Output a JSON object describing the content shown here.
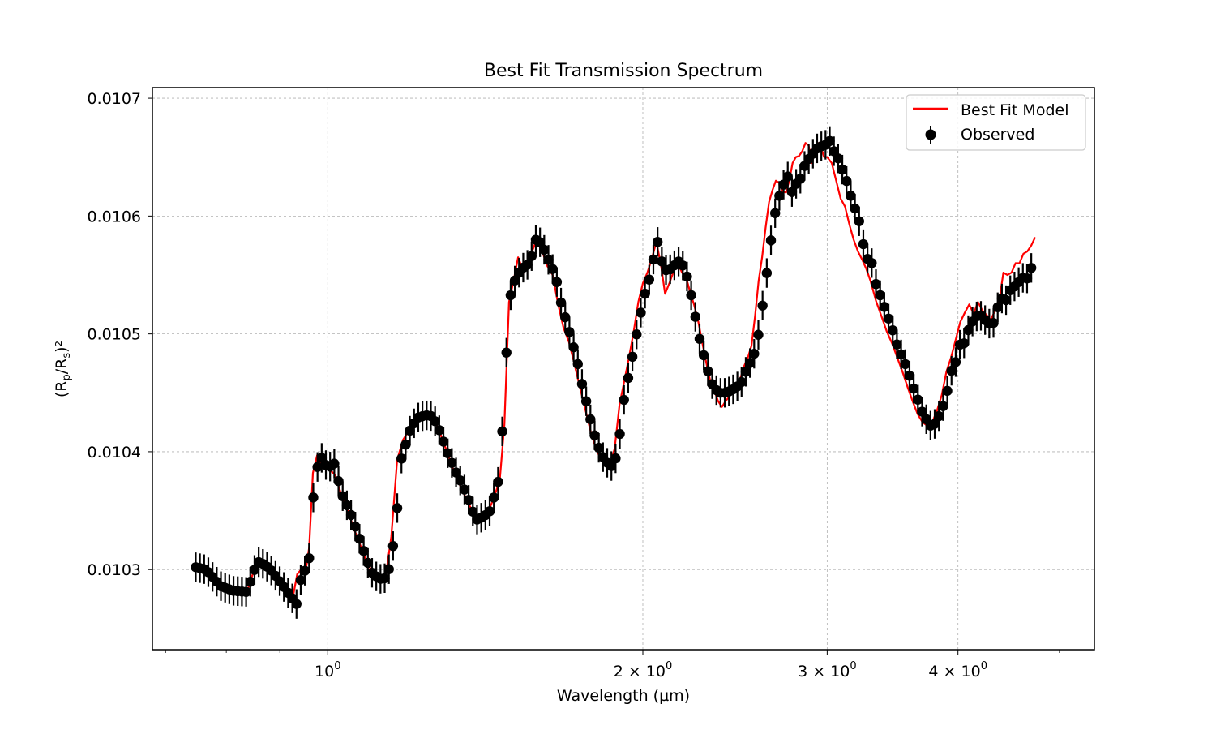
{
  "chart_data": {
    "type": "line",
    "title": "Best Fit Transmission Spectrum",
    "xlabel": "Wavelength (µm)",
    "ylabel": "(R_p/R_s)²",
    "x_scale": "log",
    "xlim": [
      0.68,
      5.4
    ],
    "ylim": [
      0.010232,
      0.010709
    ],
    "grid": true,
    "legend_position": "top-right",
    "colors": {
      "model": "#ff0000",
      "observed": "#000000"
    },
    "x_ticks": [
      {
        "value": 1,
        "base": "10",
        "exp": "0"
      },
      {
        "value": 2,
        "base": "2 × 10",
        "exp": "0"
      },
      {
        "value": 3,
        "base": "3 × 10",
        "exp": "0"
      },
      {
        "value": 4,
        "base": "4 × 10",
        "exp": "0"
      }
    ],
    "x_minor_ticks": [
      0.7,
      0.8,
      0.9,
      5
    ],
    "y_ticks": [
      {
        "value": 0.0103,
        "label": "0.0103"
      },
      {
        "value": 0.0104,
        "label": "0.0104"
      },
      {
        "value": 0.0105,
        "label": "0.0105"
      },
      {
        "value": 0.0106,
        "label": "0.0106"
      },
      {
        "value": 0.0107,
        "label": "0.0107"
      }
    ],
    "model_anchors": [
      [
        0.75,
        0.010302
      ],
      [
        0.77,
        0.010298
      ],
      [
        0.79,
        0.010287
      ],
      [
        0.81,
        0.010283
      ],
      [
        0.825,
        0.01028
      ],
      [
        0.838,
        0.010282
      ],
      [
        0.847,
        0.010295
      ],
      [
        0.855,
        0.010306
      ],
      [
        0.87,
        0.010303
      ],
      [
        0.885,
        0.010296
      ],
      [
        0.9,
        0.010288
      ],
      [
        0.915,
        0.010278
      ],
      [
        0.925,
        0.010274
      ],
      [
        0.935,
        0.010296
      ],
      [
        0.945,
        0.010301
      ],
      [
        0.953,
        0.0103
      ],
      [
        0.96,
        0.010319
      ],
      [
        0.968,
        0.010382
      ],
      [
        0.977,
        0.010397
      ],
      [
        0.99,
        0.010386
      ],
      [
        1.0,
        0.010386
      ],
      [
        1.015,
        0.010381
      ],
      [
        1.03,
        0.010364
      ],
      [
        1.045,
        0.01035
      ],
      [
        1.06,
        0.010334
      ],
      [
        1.075,
        0.01032
      ],
      [
        1.09,
        0.010306
      ],
      [
        1.105,
        0.010297
      ],
      [
        1.12,
        0.010292
      ],
      [
        1.135,
        0.010292
      ],
      [
        1.15,
        0.010328
      ],
      [
        1.165,
        0.010393
      ],
      [
        1.18,
        0.01041
      ],
      [
        1.2,
        0.01042
      ],
      [
        1.22,
        0.010428
      ],
      [
        1.24,
        0.01043
      ],
      [
        1.26,
        0.01043
      ],
      [
        1.28,
        0.010416
      ],
      [
        1.3,
        0.0104
      ],
      [
        1.32,
        0.010383
      ],
      [
        1.34,
        0.01037
      ],
      [
        1.36,
        0.010358
      ],
      [
        1.38,
        0.010346
      ],
      [
        1.4,
        0.010345
      ],
      [
        1.42,
        0.010347
      ],
      [
        1.44,
        0.01036
      ],
      [
        1.46,
        0.010376
      ],
      [
        1.475,
        0.010423
      ],
      [
        1.49,
        0.010527
      ],
      [
        1.505,
        0.010545
      ],
      [
        1.52,
        0.010565
      ],
      [
        1.54,
        0.010552
      ],
      [
        1.56,
        0.010565
      ],
      [
        1.58,
        0.010578
      ],
      [
        1.6,
        0.010572
      ],
      [
        1.62,
        0.010558
      ],
      [
        1.64,
        0.01055
      ],
      [
        1.66,
        0.010525
      ],
      [
        1.68,
        0.010505
      ],
      [
        1.7,
        0.010493
      ],
      [
        1.72,
        0.010475
      ],
      [
        1.74,
        0.010456
      ],
      [
        1.76,
        0.010438
      ],
      [
        1.78,
        0.01042
      ],
      [
        1.8,
        0.010405
      ],
      [
        1.82,
        0.010395
      ],
      [
        1.84,
        0.010389
      ],
      [
        1.86,
        0.010388
      ],
      [
        1.88,
        0.010403
      ],
      [
        1.9,
        0.01044
      ],
      [
        1.92,
        0.01046
      ],
      [
        1.94,
        0.01048
      ],
      [
        1.96,
        0.010502
      ],
      [
        1.98,
        0.010527
      ],
      [
        2.0,
        0.010543
      ],
      [
        2.02,
        0.010552
      ],
      [
        2.04,
        0.010564
      ],
      [
        2.06,
        0.010578
      ],
      [
        2.08,
        0.01056
      ],
      [
        2.1,
        0.010534
      ],
      [
        2.12,
        0.010543
      ],
      [
        2.14,
        0.010553
      ],
      [
        2.16,
        0.01056
      ],
      [
        2.18,
        0.010552
      ],
      [
        2.2,
        0.010548
      ],
      [
        2.22,
        0.010535
      ],
      [
        2.24,
        0.010524
      ],
      [
        2.26,
        0.01051
      ],
      [
        2.28,
        0.010492
      ],
      [
        2.3,
        0.010475
      ],
      [
        2.32,
        0.01046
      ],
      [
        2.34,
        0.010452
      ],
      [
        2.36,
        0.010443
      ],
      [
        2.38,
        0.010438
      ],
      [
        2.4,
        0.010443
      ],
      [
        2.42,
        0.010447
      ],
      [
        2.44,
        0.010455
      ],
      [
        2.46,
        0.010457
      ],
      [
        2.48,
        0.010463
      ],
      [
        2.5,
        0.010473
      ],
      [
        2.52,
        0.01048
      ],
      [
        2.54,
        0.01049
      ],
      [
        2.56,
        0.010515
      ],
      [
        2.58,
        0.010545
      ],
      [
        2.6,
        0.010565
      ],
      [
        2.62,
        0.01059
      ],
      [
        2.64,
        0.010612
      ],
      [
        2.66,
        0.010622
      ],
      [
        2.68,
        0.01063
      ],
      [
        2.7,
        0.010628
      ],
      [
        2.72,
        0.010621
      ],
      [
        2.74,
        0.01062
      ],
      [
        2.76,
        0.01063
      ],
      [
        2.78,
        0.010645
      ],
      [
        2.8,
        0.01065
      ],
      [
        2.82,
        0.010651
      ],
      [
        2.84,
        0.010655
      ],
      [
        2.86,
        0.010662
      ],
      [
        2.88,
        0.01066
      ],
      [
        2.9,
        0.010645
      ],
      [
        2.92,
        0.010655
      ],
      [
        2.94,
        0.010662
      ],
      [
        2.96,
        0.010658
      ],
      [
        2.98,
        0.01065
      ],
      [
        3.0,
        0.01065
      ],
      [
        3.03,
        0.010645
      ],
      [
        3.06,
        0.01063
      ],
      [
        3.09,
        0.010615
      ],
      [
        3.12,
        0.010608
      ],
      [
        3.15,
        0.010593
      ],
      [
        3.18,
        0.01058
      ],
      [
        3.21,
        0.01057
      ],
      [
        3.24,
        0.010563
      ],
      [
        3.27,
        0.010555
      ],
      [
        3.3,
        0.010545
      ],
      [
        3.34,
        0.010528
      ],
      [
        3.38,
        0.010515
      ],
      [
        3.42,
        0.010502
      ],
      [
        3.46,
        0.010492
      ],
      [
        3.5,
        0.01048
      ],
      [
        3.54,
        0.010468
      ],
      [
        3.58,
        0.010455
      ],
      [
        3.62,
        0.010443
      ],
      [
        3.66,
        0.010432
      ],
      [
        3.7,
        0.010425
      ],
      [
        3.74,
        0.010422
      ],
      [
        3.78,
        0.010425
      ],
      [
        3.82,
        0.010435
      ],
      [
        3.86,
        0.010448
      ],
      [
        3.9,
        0.010468
      ],
      [
        3.94,
        0.01048
      ],
      [
        3.98,
        0.010495
      ],
      [
        4.02,
        0.01051
      ],
      [
        4.06,
        0.010518
      ],
      [
        4.1,
        0.010525
      ],
      [
        4.14,
        0.010517
      ],
      [
        4.18,
        0.010527
      ],
      [
        4.22,
        0.01052
      ],
      [
        4.26,
        0.010516
      ],
      [
        4.3,
        0.010512
      ],
      [
        4.34,
        0.01052
      ],
      [
        4.38,
        0.010528
      ],
      [
        4.42,
        0.010552
      ],
      [
        4.46,
        0.01055
      ],
      [
        4.5,
        0.010552
      ],
      [
        4.54,
        0.01056
      ],
      [
        4.58,
        0.01056
      ],
      [
        4.62,
        0.010568
      ],
      [
        4.66,
        0.01057
      ],
      [
        4.7,
        0.010575
      ],
      [
        4.74,
        0.010582
      ]
    ],
    "observed_anchors": [
      [
        0.748,
        0.010302
      ],
      [
        0.765,
        0.0103
      ],
      [
        0.79,
        0.010286
      ],
      [
        0.812,
        0.010282
      ],
      [
        0.838,
        0.010281
      ],
      [
        0.848,
        0.010297
      ],
      [
        0.86,
        0.010307
      ],
      [
        0.88,
        0.010301
      ],
      [
        0.9,
        0.01029
      ],
      [
        0.917,
        0.01028
      ],
      [
        0.935,
        0.01027
      ],
      [
        0.945,
        0.010299
      ],
      [
        0.958,
        0.010299
      ],
      [
        0.972,
        0.01038
      ],
      [
        0.985,
        0.010396
      ],
      [
        1.0,
        0.010386
      ],
      [
        1.015,
        0.01039
      ],
      [
        1.03,
        0.010365
      ],
      [
        1.05,
        0.010349
      ],
      [
        1.065,
        0.010334
      ],
      [
        1.08,
        0.010318
      ],
      [
        1.1,
        0.010298
      ],
      [
        1.12,
        0.010292
      ],
      [
        1.14,
        0.010293
      ],
      [
        1.16,
        0.01033
      ],
      [
        1.175,
        0.010393
      ],
      [
        1.2,
        0.01042
      ],
      [
        1.22,
        0.010429
      ],
      [
        1.24,
        0.010431
      ],
      [
        1.26,
        0.01043
      ],
      [
        1.28,
        0.010417
      ],
      [
        1.3,
        0.0104
      ],
      [
        1.325,
        0.010383
      ],
      [
        1.345,
        0.010372
      ],
      [
        1.365,
        0.010358
      ],
      [
        1.385,
        0.010342
      ],
      [
        1.41,
        0.010345
      ],
      [
        1.43,
        0.01035
      ],
      [
        1.455,
        0.010375
      ],
      [
        1.47,
        0.010424
      ],
      [
        1.49,
        0.010528
      ],
      [
        1.51,
        0.010546
      ],
      [
        1.53,
        0.010555
      ],
      [
        1.56,
        0.01056
      ],
      [
        1.58,
        0.01058
      ],
      [
        1.6,
        0.010577
      ],
      [
        1.63,
        0.01056
      ],
      [
        1.65,
        0.01055
      ],
      [
        1.67,
        0.010527
      ],
      [
        1.69,
        0.010511
      ],
      [
        1.71,
        0.010495
      ],
      [
        1.73,
        0.010478
      ],
      [
        1.75,
        0.010457
      ],
      [
        1.77,
        0.010439
      ],
      [
        1.79,
        0.01042
      ],
      [
        1.81,
        0.010406
      ],
      [
        1.83,
        0.010396
      ],
      [
        1.855,
        0.010389
      ],
      [
        1.875,
        0.010387
      ],
      [
        1.895,
        0.010404
      ],
      [
        1.915,
        0.01044
      ],
      [
        1.935,
        0.010461
      ],
      [
        1.955,
        0.010481
      ],
      [
        1.975,
        0.010502
      ],
      [
        2.0,
        0.010527
      ],
      [
        2.02,
        0.010542
      ],
      [
        2.04,
        0.010552
      ],
      [
        2.06,
        0.010584
      ],
      [
        2.08,
        0.010564
      ],
      [
        2.1,
        0.010554
      ],
      [
        2.13,
        0.010555
      ],
      [
        2.16,
        0.010562
      ],
      [
        2.19,
        0.010557
      ],
      [
        2.21,
        0.010545
      ],
      [
        2.23,
        0.010528
      ],
      [
        2.25,
        0.01051
      ],
      [
        2.27,
        0.010492
      ],
      [
        2.3,
        0.010474
      ],
      [
        2.32,
        0.01046
      ],
      [
        2.345,
        0.010453
      ],
      [
        2.37,
        0.01045
      ],
      [
        2.4,
        0.01045
      ],
      [
        2.43,
        0.010452
      ],
      [
        2.46,
        0.010455
      ],
      [
        2.49,
        0.01046
      ],
      [
        2.52,
        0.010473
      ],
      [
        2.545,
        0.010478
      ],
      [
        2.57,
        0.010491
      ],
      [
        2.595,
        0.010515
      ],
      [
        2.62,
        0.010545
      ],
      [
        2.64,
        0.010565
      ],
      [
        2.66,
        0.010591
      ],
      [
        2.69,
        0.010613
      ],
      [
        2.72,
        0.010625
      ],
      [
        2.75,
        0.010634
      ],
      [
        2.775,
        0.01062
      ],
      [
        2.8,
        0.010627
      ],
      [
        2.83,
        0.010632
      ],
      [
        2.86,
        0.010645
      ],
      [
        2.89,
        0.01065
      ],
      [
        2.92,
        0.010655
      ],
      [
        2.95,
        0.01066
      ],
      [
        2.98,
        0.010658
      ],
      [
        3.01,
        0.010666
      ],
      [
        3.04,
        0.010656
      ],
      [
        3.07,
        0.01065
      ],
      [
        3.1,
        0.01064
      ],
      [
        3.13,
        0.01063
      ],
      [
        3.16,
        0.010617
      ],
      [
        3.19,
        0.010606
      ],
      [
        3.22,
        0.010595
      ],
      [
        3.25,
        0.010575
      ],
      [
        3.28,
        0.010563
      ],
      [
        3.31,
        0.01056
      ],
      [
        3.34,
        0.010542
      ],
      [
        3.38,
        0.01053
      ],
      [
        3.42,
        0.010517
      ],
      [
        3.46,
        0.010505
      ],
      [
        3.5,
        0.01049
      ],
      [
        3.54,
        0.01048
      ],
      [
        3.58,
        0.01047
      ],
      [
        3.62,
        0.010456
      ],
      [
        3.66,
        0.010445
      ],
      [
        3.7,
        0.010433
      ],
      [
        3.74,
        0.010426
      ],
      [
        3.78,
        0.01042
      ],
      [
        3.82,
        0.010427
      ],
      [
        3.86,
        0.010435
      ],
      [
        3.9,
        0.010448
      ],
      [
        3.94,
        0.010468
      ],
      [
        3.98,
        0.010476
      ],
      [
        4.02,
        0.010492
      ],
      [
        4.06,
        0.010492
      ],
      [
        4.1,
        0.010506
      ],
      [
        4.14,
        0.010512
      ],
      [
        4.18,
        0.010516
      ],
      [
        4.22,
        0.010515
      ],
      [
        4.26,
        0.01051
      ],
      [
        4.3,
        0.010508
      ],
      [
        4.34,
        0.01051
      ],
      [
        4.38,
        0.01053
      ],
      [
        4.42,
        0.01053
      ],
      [
        4.46,
        0.010528
      ],
      [
        4.5,
        0.010541
      ],
      [
        4.54,
        0.01054
      ],
      [
        4.58,
        0.010545
      ],
      [
        4.62,
        0.010548
      ],
      [
        4.66,
        0.010547
      ],
      [
        4.7,
        0.010556
      ]
    ],
    "series": [
      {
        "name": "Best Fit Model",
        "style": "line"
      },
      {
        "name": "Observed",
        "style": "errorbar",
        "point_count": 200,
        "x_range": [
          0.748,
          4.7
        ],
        "error": 1.25e-05
      }
    ]
  }
}
